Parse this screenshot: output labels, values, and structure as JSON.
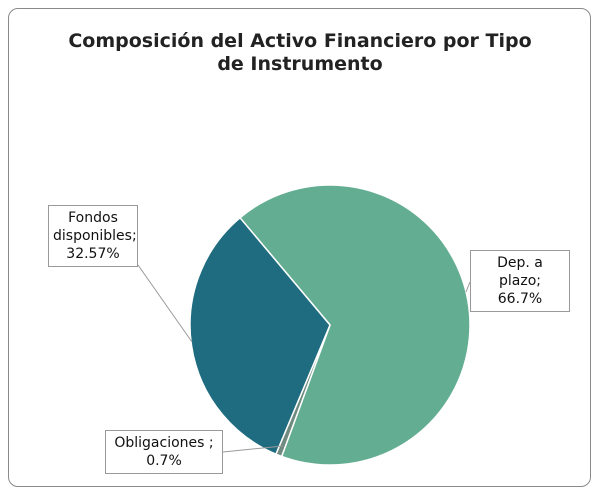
{
  "chart_data": {
    "type": "pie",
    "title": "Composición del Activo Financiero por Tipo de Instrumento",
    "categories": [
      "Dep. a plazo",
      "Obligaciones",
      "Fondos disponibles"
    ],
    "values": [
      66.7,
      0.7,
      32.57
    ],
    "value_labels": [
      "Dep. a plazo; 66.7%",
      "Obligaciones ; 0.7%",
      "Fondos disponibles; 32.57%"
    ],
    "colors": [
      "#63ad92",
      "#6f8a80",
      "#1f6b7f"
    ]
  }
}
